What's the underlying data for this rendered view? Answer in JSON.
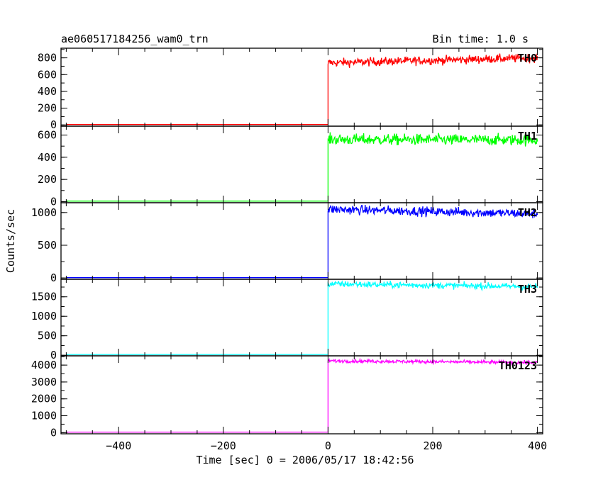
{
  "chart_data": {
    "type": "line",
    "title": "ae060517184256_wam0_trn",
    "subtitle": "Bin time: 1.0 s",
    "xlabel": "Time [sec] 0 = 2006/05/17 18:42:56",
    "ylabel": "Counts/sec",
    "xlim": [
      -510,
      410
    ],
    "x_ticks": [
      -400,
      -200,
      0,
      200,
      400
    ],
    "x_tick_labels": [
      "−400",
      "−200",
      "0",
      "200",
      "400"
    ],
    "grid": false,
    "panels": [
      {
        "name": "TH0",
        "color": "#ff0000",
        "ylim": [
          -15,
          915
        ],
        "y_ticks": [
          0,
          200,
          400,
          600,
          800
        ],
        "y_tick_labels": [
          "0",
          "200",
          "400",
          "600",
          "800"
        ],
        "pre_level": 5,
        "jump_level": 720,
        "post_start": 740,
        "post_end": 800,
        "noise": 25,
        "x_start": -500,
        "x_end": 400
      },
      {
        "name": "TH1",
        "color": "#00ff00",
        "ylim": [
          -10,
          680
        ],
        "y_ticks": [
          0,
          200,
          400,
          600
        ],
        "y_tick_labels": [
          "0",
          "200",
          "400",
          "600"
        ],
        "pre_level": 5,
        "jump_level": 560,
        "post_start": 560,
        "post_end": 555,
        "noise": 25,
        "x_start": -500,
        "x_end": 400
      },
      {
        "name": "TH2",
        "color": "#0000ff",
        "ylim": [
          -20,
          1150
        ],
        "y_ticks": [
          0,
          500,
          1000
        ],
        "y_tick_labels": [
          "0",
          "500",
          "1000"
        ],
        "pre_level": 5,
        "jump_level": 1020,
        "post_start": 1050,
        "post_end": 980,
        "noise": 35,
        "x_start": -500,
        "x_end": 400
      },
      {
        "name": "TH3",
        "color": "#00ffff",
        "ylim": [
          -15,
          1950
        ],
        "y_ticks": [
          0,
          500,
          1000,
          1500
        ],
        "y_tick_labels": [
          "0",
          "500",
          "1000",
          "1500"
        ],
        "pre_level": 20,
        "jump_level": 1850,
        "post_start": 1830,
        "post_end": 1760,
        "noise": 40,
        "x_start": -500,
        "x_end": 400
      },
      {
        "name": "TH0123",
        "color": "#ff00ff",
        "ylim": [
          -70,
          4550
        ],
        "y_ticks": [
          0,
          1000,
          2000,
          3000,
          4000
        ],
        "y_tick_labels": [
          "0",
          "1000",
          "2000",
          "3000",
          "4000"
        ],
        "pre_level": 30,
        "jump_level": 4250,
        "post_start": 4250,
        "post_end": 4150,
        "noise": 50,
        "x_start": -500,
        "x_end": 400
      }
    ]
  }
}
